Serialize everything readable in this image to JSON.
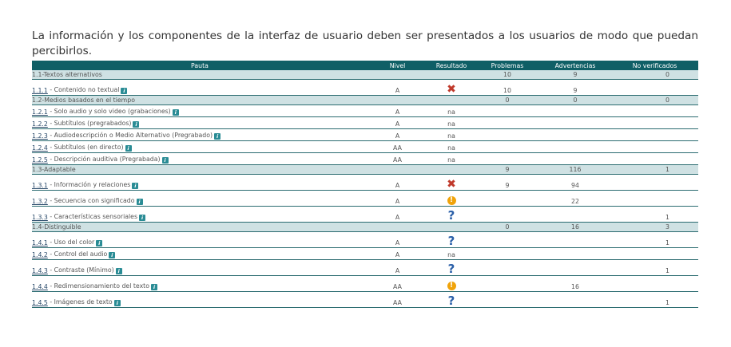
{
  "intro": "La información y los componentes de la interfaz de usuario deben ser presentados a los usuarios de modo que puedan percibirlos.",
  "columns": [
    "Pauta",
    "Nivel",
    "Resultado",
    "Problemas",
    "Advertencias",
    "No verificados"
  ],
  "groups": [
    {
      "title": "1.1-Textos alternativos",
      "problemas": "10",
      "advertencias": "9",
      "no_verificados": "0",
      "rows": [
        {
          "code": "1.1.1",
          "label": "Contenido no textual",
          "nivel": "A",
          "resultado": "fail",
          "resultado_text": "",
          "problemas": "10",
          "advertencias": "9",
          "no_verificados": ""
        }
      ]
    },
    {
      "title": "1.2-Medios basados en el tiempo",
      "problemas": "0",
      "advertencias": "0",
      "no_verificados": "0",
      "rows": [
        {
          "code": "1.2.1",
          "label": "Solo audio y solo video (grabaciones)",
          "nivel": "A",
          "resultado": "na",
          "resultado_text": "na",
          "problemas": "",
          "advertencias": "",
          "no_verificados": ""
        },
        {
          "code": "1.2.2",
          "label": "Subtítulos (pregrabados)",
          "nivel": "A",
          "resultado": "na",
          "resultado_text": "na",
          "problemas": "",
          "advertencias": "",
          "no_verificados": ""
        },
        {
          "code": "1.2.3",
          "label": "Audiodescripción o Medio Alternativo (Pregrabado)",
          "nivel": "A",
          "resultado": "na",
          "resultado_text": "na",
          "problemas": "",
          "advertencias": "",
          "no_verificados": ""
        },
        {
          "code": "1.2.4",
          "label": "Subtítulos (en directo)",
          "nivel": "AA",
          "resultado": "na",
          "resultado_text": "na",
          "problemas": "",
          "advertencias": "",
          "no_verificados": ""
        },
        {
          "code": "1.2.5",
          "label": "Descripción auditiva (Pregrabada)",
          "nivel": "AA",
          "resultado": "na",
          "resultado_text": "na",
          "problemas": "",
          "advertencias": "",
          "no_verificados": ""
        }
      ]
    },
    {
      "title": "1.3-Adaptable",
      "problemas": "9",
      "advertencias": "116",
      "no_verificados": "1",
      "rows": [
        {
          "code": "1.3.1",
          "label": "Información y relaciones",
          "nivel": "A",
          "resultado": "fail",
          "resultado_text": "",
          "problemas": "9",
          "advertencias": "94",
          "no_verificados": ""
        },
        {
          "code": "1.3.2",
          "label": "Secuencia con significado",
          "nivel": "A",
          "resultado": "warning",
          "resultado_text": "",
          "problemas": "",
          "advertencias": "22",
          "no_verificados": ""
        },
        {
          "code": "1.3.3",
          "label": "Características sensoriales",
          "nivel": "A",
          "resultado": "unverified",
          "resultado_text": "",
          "problemas": "",
          "advertencias": "",
          "no_verificados": "1"
        }
      ]
    },
    {
      "title": "1.4-Distinguible",
      "problemas": "0",
      "advertencias": "16",
      "no_verificados": "3",
      "rows": [
        {
          "code": "1.4.1",
          "label": "Uso del color",
          "nivel": "A",
          "resultado": "unverified",
          "resultado_text": "",
          "problemas": "",
          "advertencias": "",
          "no_verificados": "1"
        },
        {
          "code": "1.4.2",
          "label": "Control del audio",
          "nivel": "A",
          "resultado": "na",
          "resultado_text": "na",
          "problemas": "",
          "advertencias": "",
          "no_verificados": ""
        },
        {
          "code": "1.4.3",
          "label": "Contraste (Mínimo)",
          "nivel": "A",
          "resultado": "unverified",
          "resultado_text": "",
          "problemas": "",
          "advertencias": "",
          "no_verificados": "1"
        },
        {
          "code": "1.4.4",
          "label": "Redimensionamiento del texto",
          "nivel": "AA",
          "resultado": "warning",
          "resultado_text": "",
          "problemas": "",
          "advertencias": "16",
          "no_verificados": ""
        },
        {
          "code": "1.4.5",
          "label": "Imágenes de texto",
          "nivel": "AA",
          "resultado": "unverified",
          "resultado_text": "",
          "problemas": "",
          "advertencias": "",
          "no_verificados": "1"
        }
      ]
    }
  ],
  "icons": {
    "info": "info-icon",
    "fail": "fail-cross-icon",
    "warning": "warning-icon",
    "unverified": "question-icon"
  },
  "colors": {
    "header_bg": "#0f5f66",
    "group_bg": "#cfe1e3",
    "fail": "#c0392b",
    "warning": "#f0a30a",
    "unverified": "#2a5fa8",
    "info": "#2a8c95"
  }
}
